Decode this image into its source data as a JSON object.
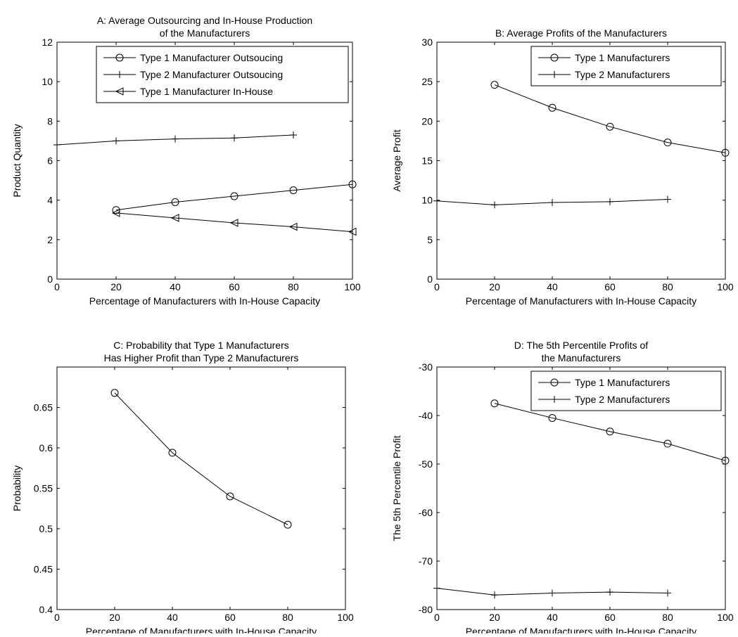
{
  "chart_data": [
    {
      "id": "A",
      "type": "line",
      "title": [
        "A: Average Outsourcing and In-House Production",
        "of the Manufacturers"
      ],
      "xlabel": "Percentage of Manufacturers with In-House Capacity",
      "ylabel": "Product Quantity",
      "xlim": [
        0,
        100
      ],
      "ylim": [
        0,
        12
      ],
      "xticks": [
        0,
        20,
        40,
        60,
        80,
        100
      ],
      "yticks": [
        0,
        2,
        4,
        6,
        8,
        10,
        12
      ],
      "legend_position": "top-right",
      "series": [
        {
          "name": "Type 1 Manufacturer Outsoucing",
          "marker": "circle",
          "x": [
            20,
            40,
            60,
            80,
            100
          ],
          "y": [
            3.5,
            3.9,
            4.2,
            4.5,
            4.8
          ]
        },
        {
          "name": "Type 2 Manufacturer Outsoucing",
          "marker": "plus",
          "x": [
            0,
            20,
            40,
            60,
            80
          ],
          "y": [
            6.8,
            7.0,
            7.1,
            7.15,
            7.3
          ]
        },
        {
          "name": "Type 1 Manufacturer In-House",
          "marker": "triangle-left",
          "x": [
            20,
            40,
            60,
            80,
            100
          ],
          "y": [
            3.35,
            3.1,
            2.85,
            2.65,
            2.4
          ]
        }
      ]
    },
    {
      "id": "B",
      "type": "line",
      "title": [
        "B: Average Profits of the Manufacturers"
      ],
      "xlabel": "Percentage of Manufacturers with In-House Capacity",
      "ylabel": "Average Profit",
      "xlim": [
        0,
        100
      ],
      "ylim": [
        0,
        30
      ],
      "xticks": [
        0,
        20,
        40,
        60,
        80,
        100
      ],
      "yticks": [
        0,
        5,
        10,
        15,
        20,
        25,
        30
      ],
      "legend_position": "top-right",
      "series": [
        {
          "name": "Type 1 Manufacturers",
          "marker": "circle",
          "x": [
            20,
            40,
            60,
            80,
            100
          ],
          "y": [
            24.6,
            21.7,
            19.3,
            17.3,
            16.0
          ]
        },
        {
          "name": "Type 2 Manufacturers",
          "marker": "plus",
          "x": [
            0,
            20,
            40,
            60,
            80
          ],
          "y": [
            9.9,
            9.4,
            9.7,
            9.8,
            10.1
          ]
        }
      ]
    },
    {
      "id": "C",
      "type": "line",
      "title": [
        "C: Probability that Type 1 Manufacturers",
        "Has Higher Profit than Type 2 Manufacturers"
      ],
      "xlabel": "Percentage of Manufacturers with In-House Capacity",
      "ylabel": "Probability",
      "xlim": [
        0,
        100
      ],
      "ylim": [
        0.4,
        0.7
      ],
      "xticks": [
        0,
        20,
        40,
        60,
        80,
        100
      ],
      "yticks": [
        0.4,
        0.45,
        0.5,
        0.55,
        0.6,
        0.65
      ],
      "ytick_labels": [
        "0.4",
        "0.45",
        "0.5",
        "0.55",
        "0.6",
        "0.65"
      ],
      "legend_position": "none",
      "series": [
        {
          "marker": "circle",
          "x": [
            20,
            40,
            60,
            80
          ],
          "y": [
            0.668,
            0.594,
            0.54,
            0.505
          ]
        }
      ]
    },
    {
      "id": "D",
      "type": "line",
      "title": [
        "D: The 5th Percentile Profits of",
        "the Manufacturers"
      ],
      "xlabel": "Percentage of Manufacturers with In-House Capacity",
      "ylabel": "The 5th Percentile Profit",
      "xlim": [
        0,
        100
      ],
      "ylim": [
        -80,
        -30
      ],
      "xticks": [
        0,
        20,
        40,
        60,
        80,
        100
      ],
      "yticks": [
        -80,
        -70,
        -60,
        -50,
        -40,
        -30
      ],
      "legend_position": "top-right",
      "series": [
        {
          "name": "Type 1 Manufacturers",
          "marker": "circle",
          "x": [
            20,
            40,
            60,
            80,
            100
          ],
          "y": [
            -37.5,
            -40.5,
            -43.3,
            -45.8,
            -49.3
          ]
        },
        {
          "name": "Type 2 Manufacturers",
          "marker": "plus",
          "x": [
            0,
            20,
            40,
            60,
            80
          ],
          "y": [
            -75.6,
            -77.0,
            -76.6,
            -76.4,
            -76.6
          ]
        }
      ]
    }
  ]
}
